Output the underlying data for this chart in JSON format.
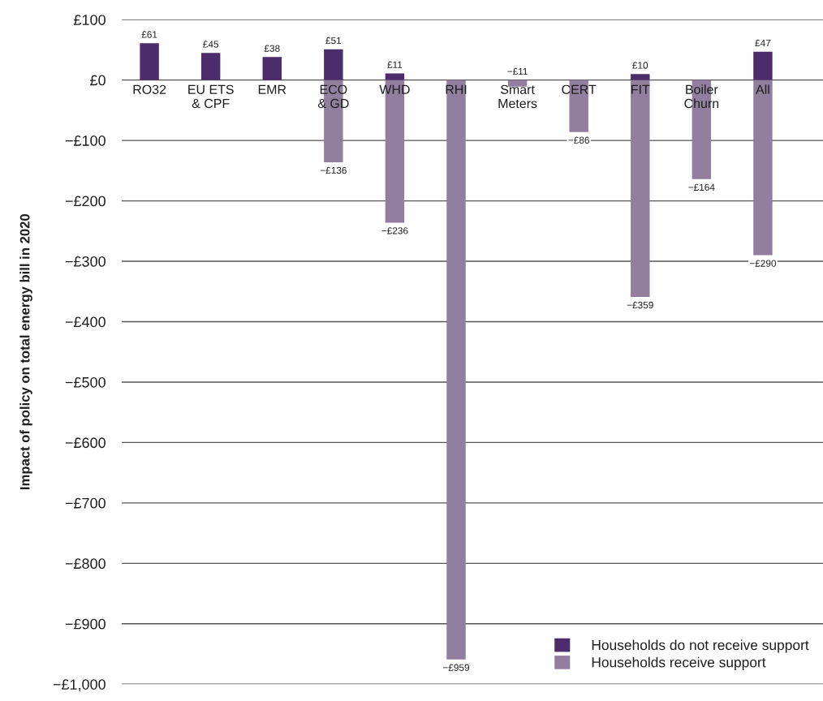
{
  "chart_data": {
    "type": "bar",
    "ylabel": "Impact of policy on total energy bill in 2020",
    "categories": [
      "RO32",
      "EU ETS & CPF",
      "EMR",
      "ECO & GD",
      "WHD",
      "RHI",
      "Smart Meters",
      "CERT",
      "FIT",
      "Boiler Churn",
      "All"
    ],
    "series": [
      {
        "name": "Households do not receive support",
        "color": "#4b2d6b",
        "values": [
          61,
          45,
          38,
          51,
          11,
          null,
          null,
          null,
          10,
          null,
          47
        ],
        "value_labels": [
          "£61",
          "£45",
          "£38",
          "£51",
          "£11",
          null,
          null,
          null,
          "£10",
          null,
          "£47"
        ]
      },
      {
        "name": "Households receive support",
        "color": "#927e9f",
        "values": [
          null,
          null,
          null,
          -136,
          -236,
          -959,
          -11,
          -86,
          -359,
          -164,
          -290
        ],
        "value_labels": [
          null,
          null,
          null,
          "−£136",
          "−£236",
          "−£959",
          "−£11",
          "−£86",
          "−£359",
          "−£164",
          "−£290"
        ]
      }
    ],
    "ylim": [
      -1000,
      100
    ],
    "yticks": [
      {
        "value": 100,
        "label": "£100"
      },
      {
        "value": 0,
        "label": "£0"
      },
      {
        "value": -100,
        "label": "−£100"
      },
      {
        "value": -200,
        "label": "−£200"
      },
      {
        "value": -300,
        "label": "−£300"
      },
      {
        "value": -400,
        "label": "−£400"
      },
      {
        "value": -500,
        "label": "−£500"
      },
      {
        "value": -600,
        "label": "−£600"
      },
      {
        "value": -700,
        "label": "−£700"
      },
      {
        "value": -800,
        "label": "−£800"
      },
      {
        "value": -900,
        "label": "−£900"
      },
      {
        "value": -1000,
        "label": "−£1,000"
      }
    ],
    "grid": "y",
    "legend": "bottom right"
  }
}
